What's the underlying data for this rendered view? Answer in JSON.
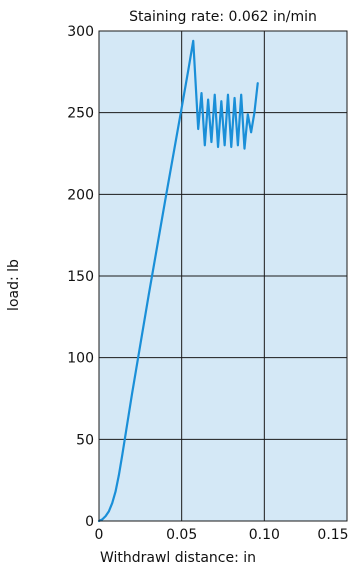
{
  "chart_data": {
    "type": "line",
    "title": "Staining rate: 0.062 in/min",
    "xlabel": "Withdrawl distance: in",
    "ylabel": "load: lb",
    "xlim": [
      0,
      0.15
    ],
    "ylim": [
      0,
      300
    ],
    "xticks": [
      0,
      0.05,
      0.1,
      0.15
    ],
    "xtick_labels": [
      "0",
      "0.05",
      "0.10",
      "0.15"
    ],
    "yticks": [
      0,
      50,
      100,
      150,
      200,
      250,
      300
    ],
    "ytick_labels": [
      "0",
      "50",
      "100",
      "150",
      "200",
      "250",
      "300"
    ],
    "grid": true,
    "legend": "none",
    "colors": {
      "plot_bg": "#d4e8f6",
      "line": "#1a8fd8",
      "grid": "#1a1a1a"
    },
    "series": [
      {
        "x": [
          0,
          0.002,
          0.004,
          0.006,
          0.008,
          0.01,
          0.012,
          0.014,
          0.02,
          0.03,
          0.04,
          0.05,
          0.054,
          0.057,
          0.06,
          0.062,
          0.064,
          0.066,
          0.068,
          0.07,
          0.072,
          0.074,
          0.076,
          0.078,
          0.08,
          0.082,
          0.084,
          0.086,
          0.088,
          0.09,
          0.092,
          0.094,
          0.096
        ],
        "y": [
          0,
          1,
          3,
          6,
          11,
          18,
          28,
          40,
          78,
          138,
          196,
          253,
          276,
          294,
          240,
          262,
          230,
          258,
          232,
          261,
          229,
          257,
          230,
          261,
          229,
          259,
          230,
          261,
          228,
          249,
          238,
          250,
          268
        ]
      }
    ]
  }
}
